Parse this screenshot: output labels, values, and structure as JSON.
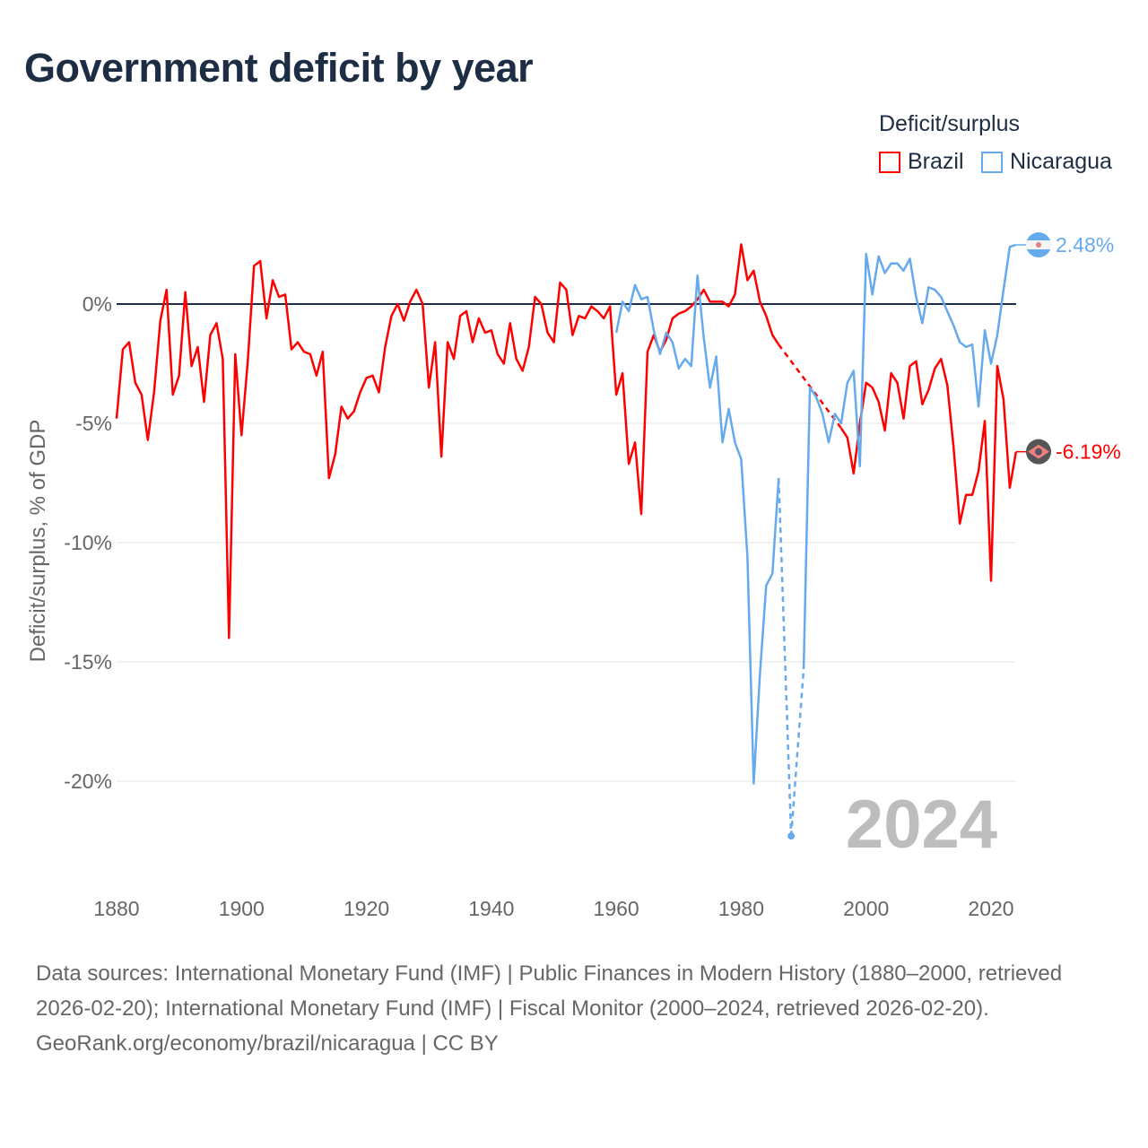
{
  "title": "Government deficit by year",
  "legend": {
    "title": "Deficit/surplus",
    "items": [
      {
        "name": "Brazil",
        "color": "#ff0000"
      },
      {
        "name": "Nicaragua",
        "color": "#66aaee"
      }
    ]
  },
  "footer": {
    "sources": "Data sources: International Monetary Fund (IMF) | Public Finances in Modern History (1880–2000, retrieved 2026-02-20); International Monetary Fund (IMF) | Fiscal Monitor (2000–2024, retrieved 2026-02-20).",
    "credit": "GeoRank.org/economy/brazil/nicaragua | CC BY"
  },
  "chart_data": {
    "type": "line",
    "title": "Government deficit by year",
    "xlabel": "",
    "ylabel": "Deficit/surplus, % of GDP",
    "xlim": [
      1880,
      2024
    ],
    "ylim": [
      -24,
      3.5
    ],
    "xticks": [
      1880,
      1900,
      1920,
      1940,
      1960,
      1980,
      2000,
      2020
    ],
    "yticks": [
      0,
      -5,
      -10,
      -15,
      -20
    ],
    "ytick_labels": [
      "0%",
      "-5%",
      "-10%",
      "-15%",
      "-20%"
    ],
    "year_label": "2024",
    "end_labels": {
      "Brazil": "-6.19%",
      "Nicaragua": "2.48%"
    },
    "series": [
      {
        "name": "Brazil",
        "color": "#ff0000",
        "start": 1880,
        "values": [
          -4.8,
          -1.9,
          -1.6,
          -3.3,
          -3.8,
          -5.7,
          -3.7,
          -0.7,
          0.6,
          -3.8,
          -3.0,
          0.5,
          -2.6,
          -1.8,
          -4.1,
          -1.3,
          -0.8,
          -2.3,
          -14.0,
          -2.1,
          -5.5,
          -2.4,
          1.6,
          1.8,
          -0.6,
          1.0,
          0.3,
          0.4,
          -1.9,
          -1.6,
          -2.0,
          -2.1,
          -3.0,
          -2.0,
          -7.3,
          -6.3,
          -4.3,
          -4.8,
          -4.5,
          -3.7,
          -3.1,
          -3.0,
          -3.7,
          -1.8,
          -0.5,
          0.0,
          -0.7,
          0.1,
          0.6,
          0.0,
          -3.5,
          -1.6,
          -6.4,
          -1.6,
          -2.3,
          -0.5,
          -0.3,
          -1.6,
          -0.6,
          -1.2,
          -1.1,
          -2.1,
          -2.5,
          -0.8,
          -2.3,
          -2.8,
          -1.8,
          0.3,
          0.0,
          -1.2,
          -1.6,
          0.9,
          0.6,
          -1.3,
          -0.5,
          -0.6,
          -0.1,
          -0.3,
          -0.6,
          -0.1,
          -3.8,
          -2.9,
          -6.7,
          -5.8,
          -8.8,
          -2.0,
          -1.3,
          -2.0,
          -1.5,
          -0.6,
          -0.4,
          -0.3,
          -0.1,
          0.2,
          0.6,
          0.1,
          0.1,
          0.1,
          -0.1,
          0.4,
          2.5,
          1.0,
          1.4,
          0.1,
          -0.5,
          -1.3,
          -1.7,
          null,
          null,
          null,
          null,
          null,
          null,
          null,
          null,
          null,
          -5.2,
          -5.6,
          -7.1,
          -5.0,
          -3.3,
          -3.5,
          -4.1,
          -5.3,
          -2.9,
          -3.3,
          -4.8,
          -2.6,
          -2.4,
          -4.2,
          -3.6,
          -2.7,
          -2.3,
          -3.4,
          -6.0,
          -9.2,
          -8.0,
          -8.0,
          -7.0,
          -4.9,
          -11.6,
          -2.6,
          -4.0,
          -7.7,
          -6.19
        ]
      },
      {
        "name": "Nicaragua",
        "color": "#66aaee",
        "start": 1960,
        "values": [
          -1.2,
          0.1,
          -0.3,
          0.8,
          0.2,
          0.3,
          -1.1,
          -2.1,
          -1.2,
          -1.6,
          -2.7,
          -2.3,
          -2.6,
          1.2,
          -1.4,
          -3.5,
          -2.2,
          -5.8,
          -4.4,
          -5.8,
          -6.5,
          -10.6,
          -20.1,
          -15.5,
          -11.8,
          -11.3,
          -7.3,
          null,
          -22.3,
          null,
          -15.3,
          -3.5,
          -3.9,
          -4.6,
          -5.8,
          -4.6,
          -5.0,
          -3.3,
          -2.8,
          -6.8,
          2.1,
          0.4,
          2.0,
          1.3,
          1.7,
          1.7,
          1.4,
          1.9,
          0.3,
          -0.8,
          0.7,
          0.6,
          0.3,
          -0.3,
          -0.9,
          -1.6,
          -1.8,
          -1.7,
          -4.3,
          -1.1,
          -2.5,
          -1.3,
          0.6,
          2.4,
          2.48
        ]
      }
    ]
  }
}
